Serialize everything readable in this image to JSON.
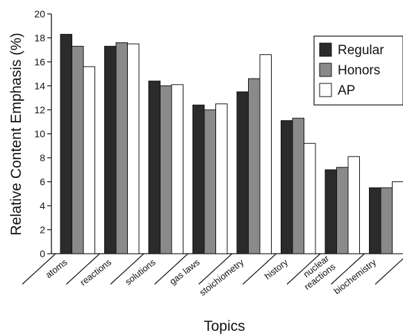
{
  "chart_data": {
    "type": "bar",
    "title": "",
    "xlabel": "Topics",
    "ylabel": "Relative Content Emphasis (%)",
    "ylim": [
      0,
      20
    ],
    "yticks": [
      0,
      2,
      4,
      6,
      8,
      10,
      12,
      14,
      16,
      18,
      20
    ],
    "categories": [
      "atoms",
      "reactions",
      "solutions",
      "gas laws",
      "stoichiometry",
      "history",
      "nuclear\nreactions",
      "biochemistry"
    ],
    "series": [
      {
        "name": "Regular",
        "color": "#2b2b2b",
        "values": [
          18.3,
          17.3,
          14.4,
          12.4,
          13.5,
          11.1,
          7.0,
          5.5
        ]
      },
      {
        "name": "Honors",
        "color": "#8a8a8a",
        "values": [
          17.3,
          17.6,
          14.0,
          12.0,
          14.6,
          11.3,
          7.2,
          5.5
        ]
      },
      {
        "name": "AP",
        "color": "#ffffff",
        "values": [
          15.6,
          17.5,
          14.1,
          12.5,
          16.6,
          9.2,
          8.1,
          6.0
        ]
      }
    ],
    "legend": "top-right",
    "grid": false
  }
}
